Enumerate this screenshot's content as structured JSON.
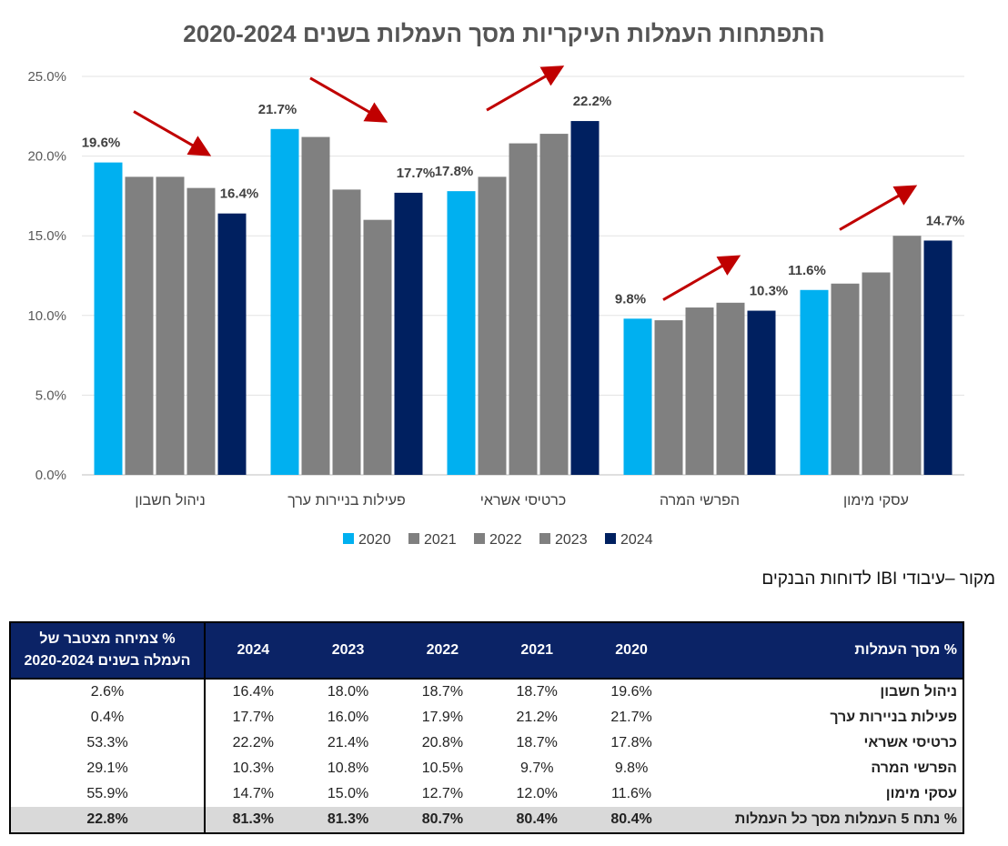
{
  "chart_data": {
    "type": "bar",
    "title": "התפתחות העמלות העיקריות מסך העמלות בשנים 2020-2024",
    "categories": [
      "ניהול חשבון",
      "פעילות בניירות ערך",
      "כרטיסי אשראי",
      "הפרשי המרה",
      "עסקי מימון"
    ],
    "series": [
      {
        "name": "2020",
        "values": [
          19.6,
          21.7,
          17.8,
          9.8,
          11.6
        ],
        "color": "#00b0f0"
      },
      {
        "name": "2021",
        "values": [
          18.7,
          21.2,
          18.7,
          9.7,
          12.0
        ],
        "color": "#808080"
      },
      {
        "name": "2022",
        "values": [
          18.7,
          17.9,
          20.8,
          10.5,
          12.7
        ],
        "color": "#808080"
      },
      {
        "name": "2023",
        "values": [
          18.0,
          16.0,
          21.4,
          10.8,
          15.0
        ],
        "color": "#808080"
      },
      {
        "name": "2024",
        "values": [
          16.4,
          17.7,
          22.2,
          10.3,
          14.7
        ],
        "color": "#002060"
      }
    ],
    "data_labels": [
      {
        "category": 0,
        "series": 0,
        "text": "19.6%"
      },
      {
        "category": 0,
        "series": 4,
        "text": "16.4%"
      },
      {
        "category": 1,
        "series": 0,
        "text": "21.7%"
      },
      {
        "category": 1,
        "series": 4,
        "text": "17.7%"
      },
      {
        "category": 2,
        "series": 0,
        "text": "17.8%"
      },
      {
        "category": 2,
        "series": 4,
        "text": "22.2%"
      },
      {
        "category": 3,
        "series": 0,
        "text": "9.8%"
      },
      {
        "category": 3,
        "series": 4,
        "text": "10.3%"
      },
      {
        "category": 4,
        "series": 0,
        "text": "11.6%"
      },
      {
        "category": 4,
        "series": 4,
        "text": "14.7%"
      }
    ],
    "trend_arrows": [
      {
        "category": 0,
        "direction": "down"
      },
      {
        "category": 1,
        "direction": "down"
      },
      {
        "category": 2,
        "direction": "up"
      },
      {
        "category": 3,
        "direction": "up"
      },
      {
        "category": 4,
        "direction": "up"
      }
    ],
    "arrow_color": "#c00000",
    "ylim": [
      0,
      25
    ],
    "yticks": [
      "0.0%",
      "5.0%",
      "10.0%",
      "15.0%",
      "20.0%",
      "25.0%"
    ],
    "grid": true,
    "legend": "bottom-center",
    "xlabel": "",
    "ylabel": ""
  },
  "source_note": "מקור –עיבודי IBI לדוחות הבנקים",
  "table": {
    "label_header": "% מסך העמלות",
    "year_headers": [
      "2020",
      "2021",
      "2022",
      "2023",
      "2024"
    ],
    "growth_header": "% צמיחה מצטבר של העמלה בשנים 2020-2024",
    "rows": [
      {
        "label": "ניהול חשבון",
        "values": [
          "19.6%",
          "18.7%",
          "18.7%",
          "18.0%",
          "16.4%"
        ],
        "growth": "2.6%"
      },
      {
        "label": "פעילות בניירות ערך",
        "values": [
          "21.7%",
          "21.2%",
          "17.9%",
          "16.0%",
          "17.7%"
        ],
        "growth": "0.4%"
      },
      {
        "label": "כרטיסי אשראי",
        "values": [
          "17.8%",
          "18.7%",
          "20.8%",
          "21.4%",
          "22.2%"
        ],
        "growth": "53.3%"
      },
      {
        "label": "הפרשי המרה",
        "values": [
          "9.8%",
          "9.7%",
          "10.5%",
          "10.8%",
          "10.3%"
        ],
        "growth": "29.1%"
      },
      {
        "label": "עסקי מימון",
        "values": [
          "11.6%",
          "12.0%",
          "12.7%",
          "15.0%",
          "14.7%"
        ],
        "growth": "55.9%"
      }
    ],
    "total_row": {
      "label": "% נתח 5 העמלות מסך כל העמלות",
      "values": [
        "80.4%",
        "80.4%",
        "80.7%",
        "81.3%",
        "81.3%"
      ],
      "growth": "22.8%"
    }
  }
}
